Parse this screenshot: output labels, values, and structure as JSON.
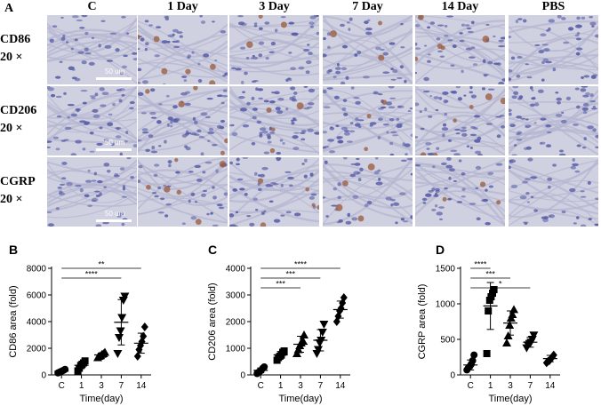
{
  "panel_a": {
    "letter": "A",
    "columns": [
      "C",
      "1 Day",
      "3 Day",
      "7 Day",
      "14 Day",
      "PBS"
    ],
    "rows": [
      {
        "marker": "CD86",
        "mag": "20 ×"
      },
      {
        "marker": "CD206",
        "mag": "20 ×"
      },
      {
        "marker": "CGRP",
        "mag": "20 ×"
      }
    ],
    "scale_label": "50 um",
    "tissue_color": "#cfd0e0",
    "nuclei_color": "#5a5fa8",
    "stain_color": "#9a5a3a"
  },
  "chart_data": [
    {
      "panel": "B",
      "type": "scatter",
      "title": "",
      "xlabel": "Time(day)",
      "ylabel": "CD86 area (fold)",
      "categories": [
        "C",
        "1",
        "3",
        "7",
        "14"
      ],
      "ylim": [
        0,
        8000
      ],
      "yticks": [
        0,
        2000,
        4000,
        6000,
        8000
      ],
      "markers": [
        "circle",
        "square",
        "triangle-up",
        "triangle-down",
        "diamond"
      ],
      "points": [
        [
          150,
          200,
          250,
          300,
          350,
          420
        ],
        [
          300,
          500,
          700,
          800,
          900,
          1050
        ],
        [
          1300,
          1400,
          1450,
          1550,
          1600,
          1700
        ],
        [
          1600,
          2800,
          3300,
          4300,
          5600,
          5900
        ],
        [
          1400,
          1900,
          2200,
          2500,
          2900,
          3600
        ]
      ],
      "mean": [
        280,
        720,
        1500,
        3950,
        2380
      ],
      "sd": [
        90,
        230,
        140,
        1700,
        750
      ],
      "significance": [
        {
          "label": "**",
          "from": "C",
          "to": "14"
        },
        {
          "label": "****",
          "from": "C",
          "to": "7"
        }
      ]
    },
    {
      "panel": "C",
      "type": "scatter",
      "title": "",
      "xlabel": "Time(day)",
      "ylabel": "CD206 area (fold)",
      "categories": [
        "C",
        "1",
        "3",
        "7",
        "14"
      ],
      "ylim": [
        0,
        4000
      ],
      "yticks": [
        0,
        1000,
        2000,
        3000,
        4000
      ],
      "markers": [
        "circle",
        "square",
        "triangle-up",
        "triangle-down",
        "diamond"
      ],
      "points": [
        [
          50,
          100,
          130,
          180,
          250,
          300
        ],
        [
          550,
          650,
          700,
          750,
          850,
          900
        ],
        [
          800,
          950,
          1100,
          1200,
          1300,
          1500
        ],
        [
          800,
          950,
          1200,
          1300,
          1600,
          1900
        ],
        [
          2000,
          2200,
          2400,
          2500,
          2700,
          2900
        ]
      ],
      "mean": [
        170,
        750,
        1150,
        1300,
        2450
      ],
      "sd": [
        90,
        130,
        300,
        400,
        320
      ],
      "significance": [
        {
          "label": "****",
          "from": "C",
          "to": "14"
        },
        {
          "label": "***",
          "from": "C",
          "to": "7"
        },
        {
          "label": "***",
          "from": "C",
          "to": "3"
        }
      ]
    },
    {
      "panel": "D",
      "type": "scatter",
      "title": "",
      "xlabel": "Time(day)",
      "ylabel": "CGRP area (fold)",
      "categories": [
        "C",
        "1",
        "3",
        "7",
        "14"
      ],
      "ylim": [
        0,
        1500
      ],
      "yticks": [
        0,
        500,
        1000,
        1500
      ],
      "markers": [
        "circle",
        "square",
        "triangle-up",
        "triangle-down",
        "diamond"
      ],
      "points": [
        [
          70,
          100,
          120,
          150,
          200,
          280
        ],
        [
          300,
          900,
          1050,
          1100,
          1150,
          1200
        ],
        [
          450,
          550,
          700,
          800,
          850,
          920
        ],
        [
          380,
          420,
          440,
          460,
          500,
          560
        ],
        [
          170,
          190,
          200,
          230,
          250,
          280
        ]
      ],
      "mean": [
        140,
        970,
        730,
        460,
        230
      ],
      "sd": [
        70,
        330,
        170,
        70,
        45
      ],
      "significance": [
        {
          "label": "****",
          "from": "C",
          "to": "1"
        },
        {
          "label": "***",
          "from": "C",
          "to": "3"
        },
        {
          "label": "*",
          "from": "C",
          "to": "7"
        }
      ]
    }
  ]
}
